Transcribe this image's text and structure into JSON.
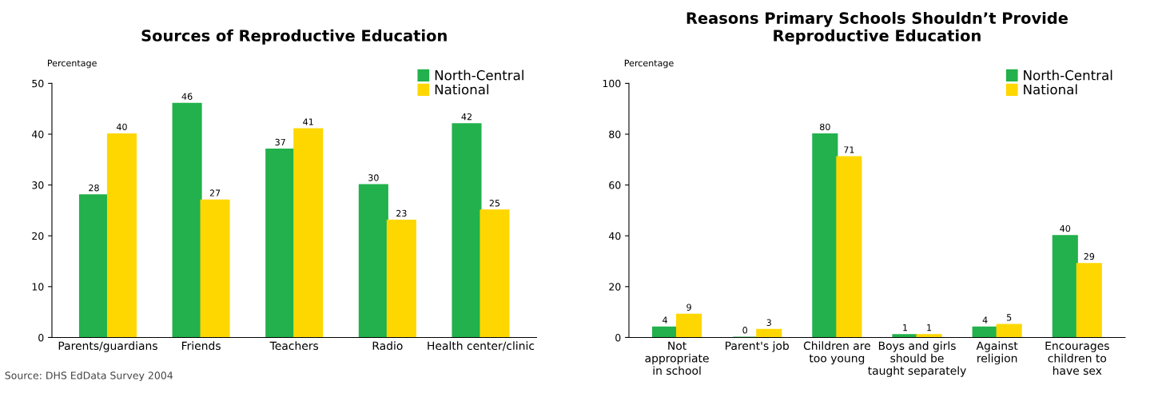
{
  "chart_data": [
    {
      "type": "bar",
      "title": "Sources of Reproductive Education",
      "ylabel": "Percentage",
      "categories": [
        "Parents/guardians",
        "Friends",
        "Teachers",
        "Radio",
        "Health center/clinic"
      ],
      "series": [
        {
          "name": "North-Central",
          "color": "#22b14c",
          "values": [
            28,
            46,
            37,
            30,
            42
          ]
        },
        {
          "name": "National",
          "color": "#ffd700",
          "values": [
            40,
            27,
            41,
            23,
            25
          ]
        }
      ],
      "ylim": [
        0,
        50
      ],
      "yticks": [
        0,
        10,
        20,
        30,
        40,
        50
      ],
      "grid": false,
      "legend": "top right",
      "data_labels": true,
      "annotations": [
        "Source: DHS EdData Survey 2004"
      ]
    },
    {
      "type": "bar",
      "title": "Reasons Primary Schools Shouldn’t Provide\nReproductive Education",
      "ylabel": "Percentage",
      "categories": [
        "Not\nappropriate\nin school",
        "Parent's job",
        "Children are\ntoo young",
        "Boys and girls\nshould be\ntaught separately",
        "Against\nreligion",
        "Encourages\nchildren to\nhave sex"
      ],
      "series": [
        {
          "name": "North-Central",
          "color": "#22b14c",
          "values": [
            4,
            0,
            80,
            1,
            4,
            40
          ]
        },
        {
          "name": "National",
          "color": "#ffd700",
          "values": [
            9,
            3,
            71,
            1,
            5,
            29
          ]
        }
      ],
      "ylim": [
        0,
        100
      ],
      "yticks": [
        0,
        20,
        40,
        60,
        80,
        100
      ],
      "grid": false,
      "legend": "top right",
      "data_labels": true
    }
  ]
}
